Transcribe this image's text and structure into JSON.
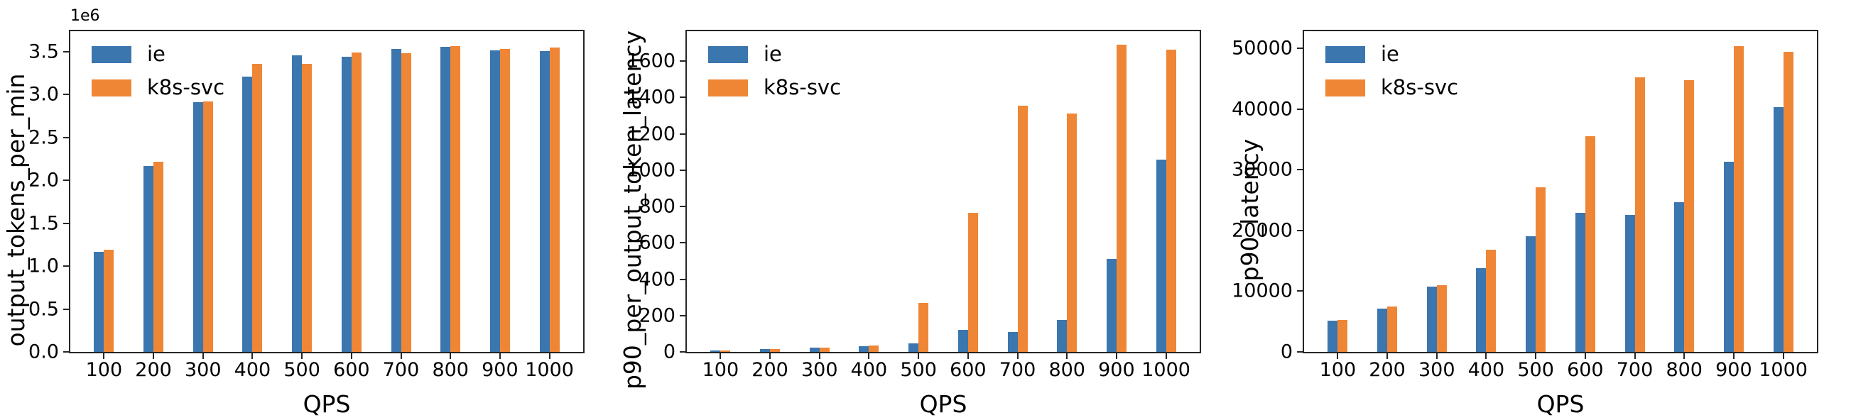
{
  "figure": {
    "background": "#ffffff",
    "axis_color": "#262626",
    "series_colors": {
      "ie": "#3B76AF",
      "k8s-svc": "#EF8636"
    }
  },
  "chart_data": [
    {
      "type": "bar",
      "title": "",
      "xlabel": "QPS",
      "ylabel": "output_tokens_per_min",
      "offset_text": "1e6",
      "grid": false,
      "legend_position": "upper-left",
      "categories": [
        "100",
        "200",
        "300",
        "400",
        "500",
        "600",
        "700",
        "800",
        "900",
        "1000"
      ],
      "series": [
        {
          "name": "ie",
          "color": "#3B76AF",
          "values": [
            1170000,
            2170000,
            2910000,
            3210000,
            3460000,
            3440000,
            3530000,
            3560000,
            3520000,
            3510000
          ]
        },
        {
          "name": "k8s-svc",
          "color": "#EF8636",
          "values": [
            1190000,
            2220000,
            2920000,
            3360000,
            3360000,
            3490000,
            3480000,
            3570000,
            3530000,
            3550000
          ]
        }
      ],
      "ylim": [
        0,
        3740000
      ],
      "yticks": [
        {
          "value": 0,
          "label": "0.0"
        },
        {
          "value": 500000,
          "label": "0.5"
        },
        {
          "value": 1000000,
          "label": "1.0"
        },
        {
          "value": 1500000,
          "label": "1.5"
        },
        {
          "value": 2000000,
          "label": "2.0"
        },
        {
          "value": 2500000,
          "label": "2.5"
        },
        {
          "value": 3000000,
          "label": "3.0"
        },
        {
          "value": 3500000,
          "label": "3.5"
        }
      ]
    },
    {
      "type": "bar",
      "title": "",
      "xlabel": "QPS",
      "ylabel": "p90_per_output_token_latency",
      "offset_text": "",
      "grid": false,
      "legend_position": "upper-left",
      "categories": [
        "100",
        "200",
        "300",
        "400",
        "500",
        "600",
        "700",
        "800",
        "900",
        "1000"
      ],
      "series": [
        {
          "name": "ie",
          "color": "#3B76AF",
          "values": [
            8,
            15,
            22,
            30,
            45,
            121,
            109,
            176,
            511,
            1058
          ]
        },
        {
          "name": "k8s-svc",
          "color": "#EF8636",
          "values": [
            9,
            16,
            23,
            36,
            268,
            764,
            1354,
            1313,
            1692,
            1665
          ]
        }
      ],
      "ylim": [
        0,
        1765
      ],
      "yticks": [
        {
          "value": 0,
          "label": "0"
        },
        {
          "value": 200,
          "label": "200"
        },
        {
          "value": 400,
          "label": "400"
        },
        {
          "value": 600,
          "label": "600"
        },
        {
          "value": 800,
          "label": "800"
        },
        {
          "value": 1000,
          "label": "1000"
        },
        {
          "value": 1200,
          "label": "1200"
        },
        {
          "value": 1400,
          "label": "1400"
        },
        {
          "value": 1600,
          "label": "1600"
        }
      ]
    },
    {
      "type": "bar",
      "title": "",
      "xlabel": "QPS",
      "ylabel": "p90_latency",
      "offset_text": "",
      "grid": false,
      "legend_position": "upper-left",
      "categories": [
        "100",
        "200",
        "300",
        "400",
        "500",
        "600",
        "700",
        "800",
        "900",
        "1000"
      ],
      "series": [
        {
          "name": "ie",
          "color": "#3B76AF",
          "values": [
            5100,
            7100,
            10800,
            13800,
            19100,
            22900,
            22600,
            24600,
            31300,
            40300
          ]
        },
        {
          "name": "k8s-svc",
          "color": "#EF8636",
          "values": [
            5300,
            7500,
            11000,
            16800,
            27100,
            35500,
            45250,
            44800,
            50300,
            49400
          ]
        }
      ],
      "ylim": [
        0,
        52800
      ],
      "yticks": [
        {
          "value": 0,
          "label": "0"
        },
        {
          "value": 10000,
          "label": "10000"
        },
        {
          "value": 20000,
          "label": "20000"
        },
        {
          "value": 30000,
          "label": "30000"
        },
        {
          "value": 40000,
          "label": "40000"
        },
        {
          "value": 50000,
          "label": "50000"
        }
      ]
    }
  ]
}
